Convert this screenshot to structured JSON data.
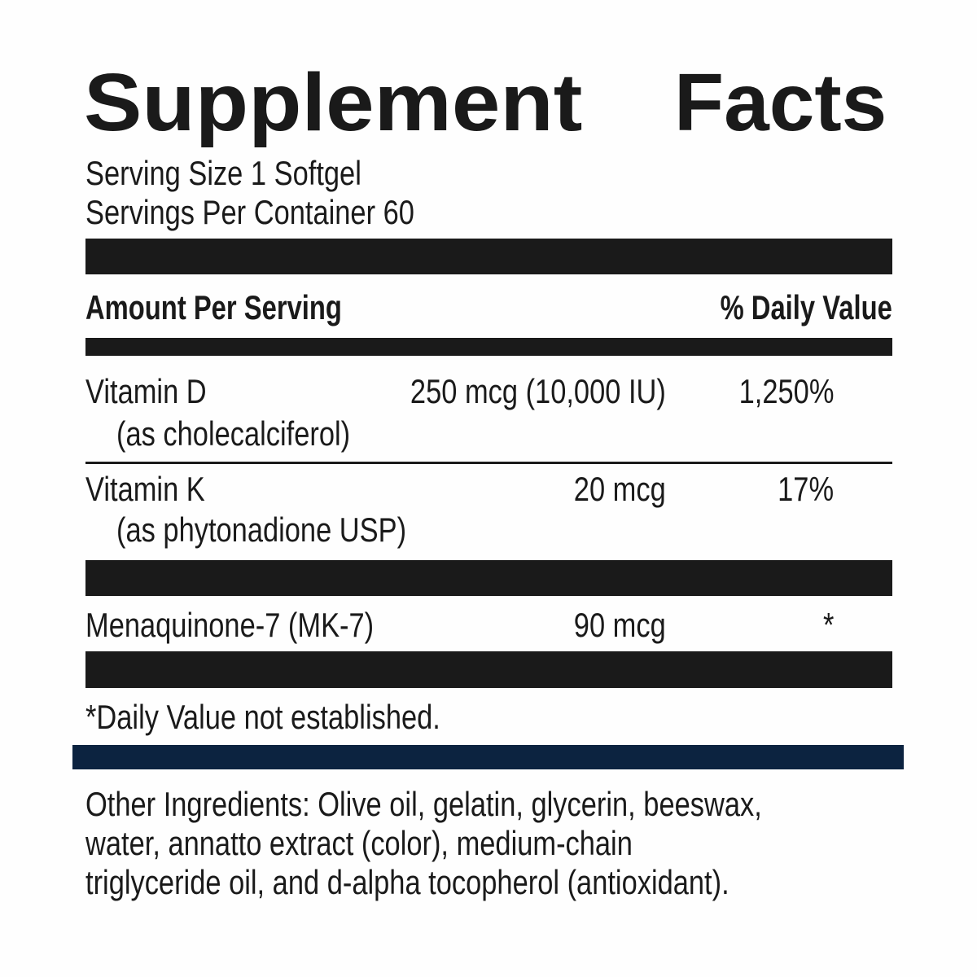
{
  "title": {
    "word1": "Supplement",
    "word2": "Facts"
  },
  "serving_size": "Serving Size 1 Softgel",
  "servings_per_container": "Servings Per Container 60",
  "header": {
    "amount": "Amount Per Serving",
    "dv": "% Daily Value"
  },
  "rows": [
    {
      "name": "Vitamin D",
      "source": "(as cholecalciferol)",
      "amount": "250 mcg (10,000 IU)",
      "dv": "1,250%"
    },
    {
      "name": "Vitamin K",
      "source": "(as phytonadione USP)",
      "amount": "20 mcg",
      "dv": "17%"
    },
    {
      "name": "Menaquinone-7 (MK-7)",
      "amount": "90 mcg",
      "dv": "*"
    }
  ],
  "footnote": "*Daily Value not established.",
  "other_ingredients": [
    "Other Ingredients: Olive oil, gelatin, glycerin, beeswax,",
    "water, annatto extract (color), medium-chain",
    "triglyceride oil, and d-alpha tocopherol (antioxidant)."
  ],
  "colors": {
    "text": "#1a1a1a",
    "accent_bar": "#0c2340"
  }
}
